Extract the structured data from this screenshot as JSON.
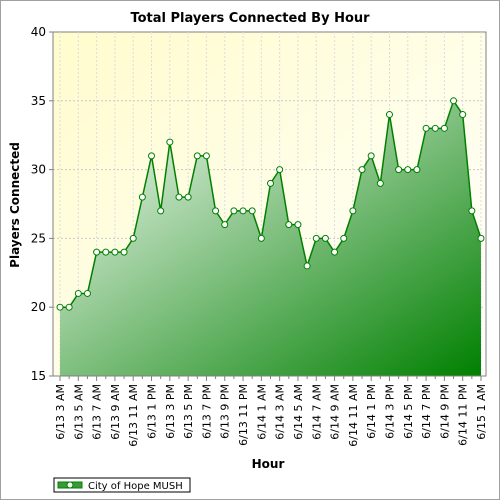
{
  "chart_data": {
    "type": "area",
    "title": "Total Players Connected By Hour",
    "xlabel": "Hour",
    "ylabel": "Players Connected",
    "ylim": [
      15,
      40
    ],
    "yticks": [
      15,
      20,
      25,
      30,
      35,
      40
    ],
    "grid": true,
    "legend_position": "bottom-left",
    "x_tick_labels": [
      "6/13 3 AM",
      "6/13 5 AM",
      "6/13 7 AM",
      "6/13 9 AM",
      "6/13 11 AM",
      "6/13 1 PM",
      "6/13 3 PM",
      "6/13 5 PM",
      "6/13 7 PM",
      "6/13 9 PM",
      "6/13 11 PM",
      "6/14 1 AM",
      "6/14 3 AM",
      "6/14 5 AM",
      "6/14 7 AM",
      "6/14 9 AM",
      "6/14 11 AM",
      "6/14 1 PM",
      "6/14 3 PM",
      "6/14 5 PM",
      "6/14 7 PM",
      "6/14 9 PM",
      "6/14 11 PM",
      "6/15 1 AM"
    ],
    "series": [
      {
        "name": "City of Hope MUSH",
        "color": "#008000",
        "values": [
          20,
          20,
          21,
          21,
          24,
          24,
          24,
          24,
          25,
          28,
          31,
          27,
          32,
          28,
          28,
          31,
          31,
          27,
          26,
          27,
          27,
          27,
          25,
          29,
          30,
          26,
          26,
          23,
          25,
          25,
          24,
          25,
          27,
          30,
          31,
          29,
          34,
          30,
          30,
          30,
          33,
          33,
          33,
          35,
          34,
          27,
          25
        ]
      }
    ]
  }
}
